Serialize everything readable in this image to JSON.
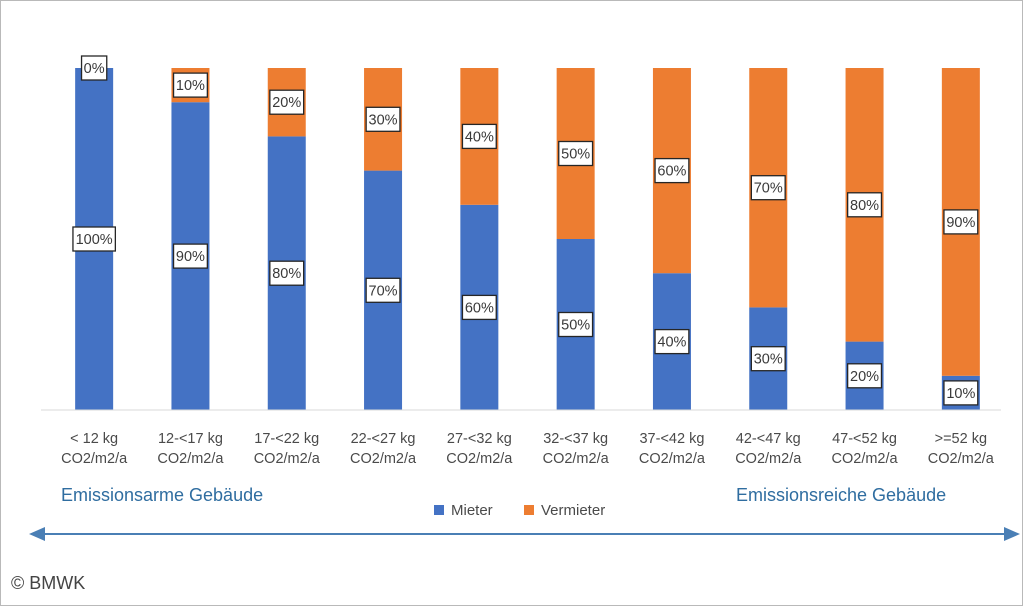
{
  "chart_data": {
    "type": "bar",
    "stacked": true,
    "percent_stacked": true,
    "categories": [
      [
        "< 12 kg",
        "CO2/m2/a"
      ],
      [
        "12-<17 kg",
        "CO2/m2/a"
      ],
      [
        "17-<22 kg",
        "CO2/m2/a"
      ],
      [
        "22-<27 kg",
        "CO2/m2/a"
      ],
      [
        "27-<32 kg",
        "CO2/m2/a"
      ],
      [
        "32-<37 kg",
        "CO2/m2/a"
      ],
      [
        "37-<42 kg",
        "CO2/m2/a"
      ],
      [
        "42-<47 kg",
        "CO2/m2/a"
      ],
      [
        "47-<52 kg",
        "CO2/m2/a"
      ],
      [
        ">=52 kg",
        "CO2/m2/a"
      ]
    ],
    "series": [
      {
        "name": "Mieter",
        "color": "#4472c4",
        "values": [
          100,
          90,
          80,
          70,
          60,
          50,
          40,
          30,
          20,
          10
        ],
        "labels": [
          "100%",
          "90%",
          "80%",
          "70%",
          "60%",
          "50%",
          "40%",
          "30%",
          "20%",
          "10%"
        ]
      },
      {
        "name": "Vermieter",
        "color": "#ed7d31",
        "values": [
          0,
          10,
          20,
          30,
          40,
          50,
          60,
          70,
          80,
          90
        ],
        "labels": [
          "0%",
          "10%",
          "20%",
          "30%",
          "40%",
          "50%",
          "60%",
          "70%",
          "80%",
          "90%"
        ]
      }
    ],
    "ylim": [
      0,
      100
    ],
    "grid": false,
    "legend": "bottom",
    "annotations": {
      "left": "Emissionsarme Gebäude",
      "right": "Emissionsreiche Gebäude"
    },
    "arrow_color": "#4a7fb5"
  },
  "copyright": "© BMWK"
}
